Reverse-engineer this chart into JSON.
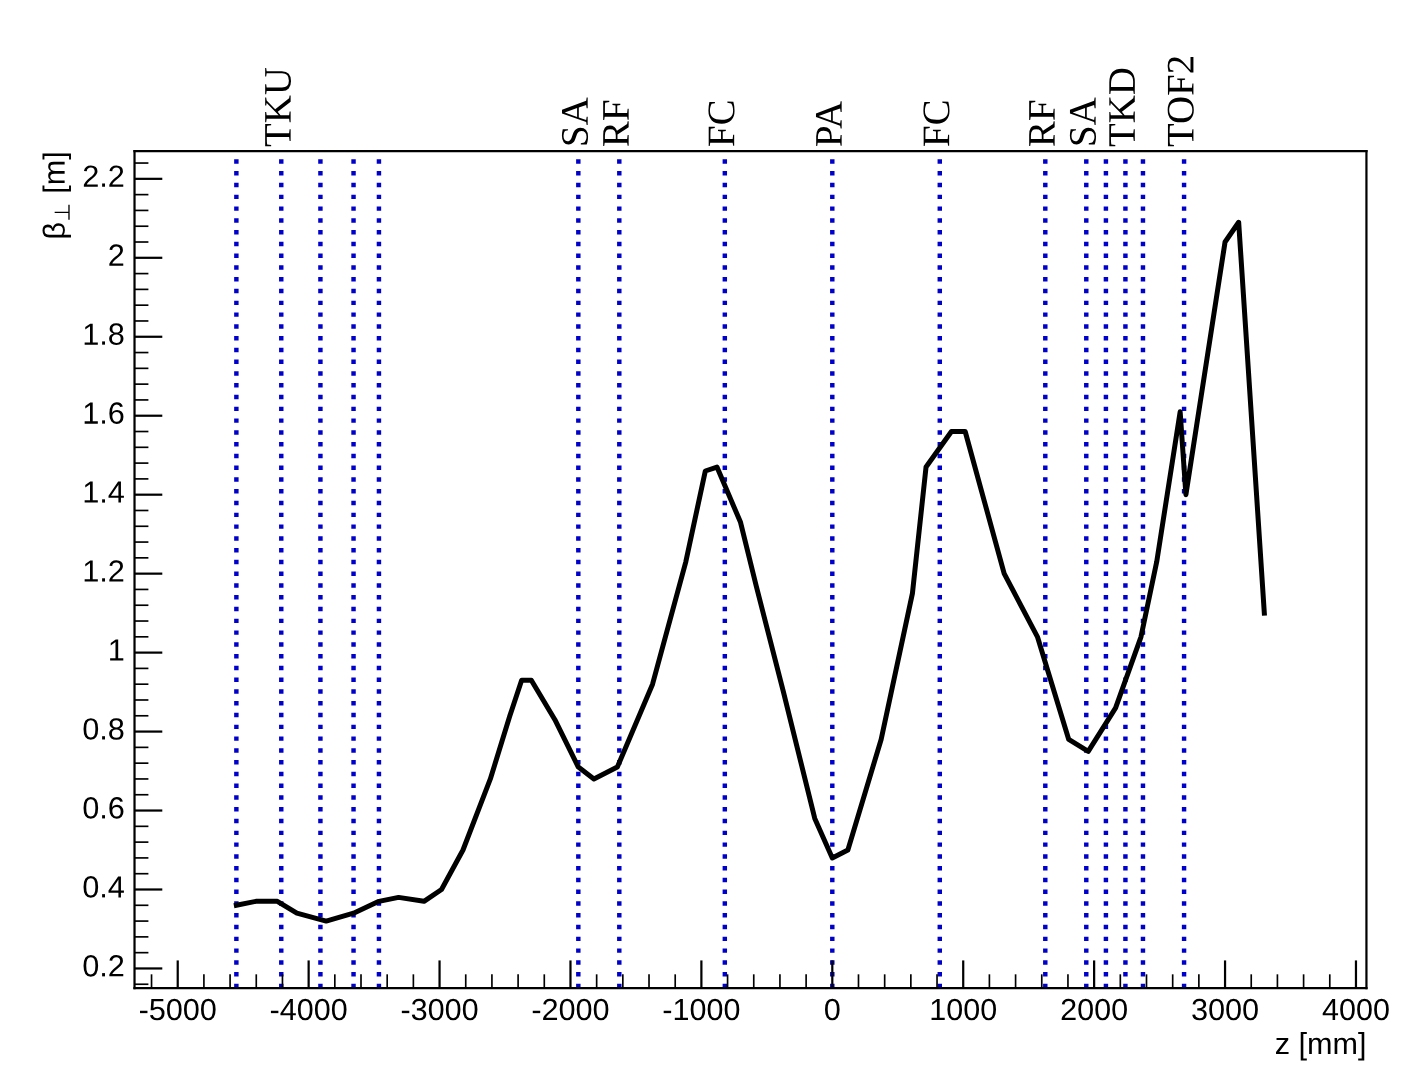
{
  "chart_data": {
    "type": "line",
    "xlabel": "z [mm]",
    "ylabel": "β$_{⊥}$ [m]",
    "x": [
      -4552,
      -4403,
      -4239,
      -4090,
      -3866,
      -3657,
      -3463,
      -3313,
      -3119,
      -2985,
      -2821,
      -2612,
      -2463,
      -2373,
      -2299,
      -2119,
      -1940,
      -1821,
      -1642,
      -1373,
      -1119,
      -970,
      -881,
      -701,
      -582,
      -373,
      -134,
      0,
      119,
      373,
      612,
      716,
      910,
      1015,
      1164,
      1313,
      1567,
      1806,
      1955,
      2164,
      2358,
      2478,
      2657,
      2701,
      3000,
      3104,
      3300
    ],
    "series": [
      {
        "color": "#000000",
        "values": [
          0.36,
          0.37,
          0.37,
          0.34,
          0.32,
          0.34,
          0.37,
          0.38,
          0.37,
          0.4,
          0.5,
          0.68,
          0.84,
          0.93,
          0.93,
          0.83,
          0.71,
          0.68,
          0.71,
          0.92,
          1.23,
          1.46,
          1.47,
          1.33,
          1.17,
          0.9,
          0.58,
          0.48,
          0.5,
          0.78,
          1.15,
          1.47,
          1.56,
          1.56,
          1.38,
          1.2,
          1.04,
          0.78,
          0.75,
          0.86,
          1.04,
          1.23,
          1.61,
          1.4,
          2.04,
          2.09,
          1.1
        ]
      }
    ],
    "xlim": [
      -5330,
      4080
    ],
    "ylim": [
      0.15,
      2.27
    ],
    "xticks": [
      -5000,
      -4000,
      -3000,
      -2000,
      -1000,
      0,
      1000,
      2000,
      3000,
      4000
    ],
    "yticks": [
      0.2,
      0.4,
      0.6,
      0.8,
      1,
      1.2,
      1.4,
      1.6,
      1.8,
      2,
      2.2
    ],
    "grid": false,
    "marker": "none",
    "line_style": "solid",
    "ref_lines": [
      {
        "axis": "x",
        "value": -4552,
        "label": null,
        "color": "#0000cc",
        "line_style": "dotted"
      },
      {
        "axis": "x",
        "value": -4209,
        "label": "TKU",
        "color": "#0000cc",
        "line_style": "dotted"
      },
      {
        "axis": "x",
        "value": -3910,
        "label": null,
        "color": "#0000cc",
        "line_style": "dotted"
      },
      {
        "axis": "x",
        "value": -3657,
        "label": null,
        "color": "#0000cc",
        "line_style": "dotted"
      },
      {
        "axis": "x",
        "value": -3463,
        "label": null,
        "color": "#0000cc",
        "line_style": "dotted"
      },
      {
        "axis": "x",
        "value": -1940,
        "label": "SA",
        "color": "#0000cc",
        "line_style": "dotted"
      },
      {
        "axis": "x",
        "value": -1627,
        "label": "RF",
        "color": "#0000cc",
        "line_style": "dotted"
      },
      {
        "axis": "x",
        "value": -821,
        "label": "FC",
        "color": "#0000cc",
        "line_style": "dotted"
      },
      {
        "axis": "x",
        "value": 0,
        "label": "PA",
        "color": "#0000cc",
        "line_style": "dotted"
      },
      {
        "axis": "x",
        "value": 821,
        "label": "FC",
        "color": "#0000cc",
        "line_style": "dotted"
      },
      {
        "axis": "x",
        "value": 1627,
        "label": "RF",
        "color": "#0000cc",
        "line_style": "dotted"
      },
      {
        "axis": "x",
        "value": 1940,
        "label": "SA",
        "color": "#0000cc",
        "line_style": "dotted"
      },
      {
        "axis": "x",
        "value": 2090,
        "label": null,
        "color": "#0000cc",
        "line_style": "dotted"
      },
      {
        "axis": "x",
        "value": 2239,
        "label": "TKD",
        "color": "#0000cc",
        "line_style": "dotted"
      },
      {
        "axis": "x",
        "value": 2373,
        "label": null,
        "color": "#0000cc",
        "line_style": "dotted"
      },
      {
        "axis": "x",
        "value": 2687,
        "label": "TOF2",
        "color": "#0000cc",
        "line_style": "dotted"
      }
    ]
  }
}
